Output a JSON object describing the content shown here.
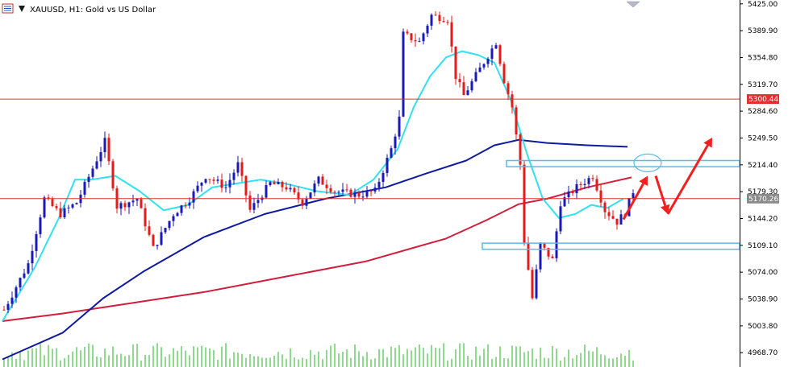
{
  "window": {
    "title": "XAUUSD, H1:  Gold vs US Dollar",
    "icon": "chart-window-icon",
    "minimize_icon": "triangle-minimize-icon"
  },
  "colors": {
    "bull_candle": "#1a1ab4",
    "bear_candle": "#e41b1b",
    "ma_fast": "#33e0ef",
    "ma_mid": "#0f1aa0",
    "ma_slow": "#d01e3c",
    "volume": "#22b322",
    "hline": "#e03030",
    "zone": "#5cb8e8",
    "arrow": "#f02020",
    "price_tag_red": "#e03030",
    "price_tag_grey": "#8a8a8a"
  },
  "chart_data": {
    "type": "candlestick",
    "symbol": "XAUUSD",
    "timeframe": "H1",
    "description": "Gold vs US Dollar",
    "ylim": [
      4950,
      5430
    ],
    "y_ticks": [
      "5425.00",
      "5389.90",
      "5354.80",
      "5319.70",
      "5284.60",
      "5249.50",
      "5214.40",
      "5179.30",
      "5144.20",
      "5109.10",
      "5074.00",
      "5038.90",
      "5003.80",
      "4968.70"
    ],
    "y_tick_values": [
      5425.0,
      5389.9,
      5354.8,
      5319.7,
      5284.6,
      5249.5,
      5214.4,
      5179.3,
      5144.2,
      5109.1,
      5074.0,
      5038.9,
      5003.8,
      4968.7
    ],
    "price_tags": [
      {
        "label": "5300.44",
        "value": 5300.44,
        "style": "red"
      },
      {
        "label": "5170.26",
        "value": 5170.26,
        "style": "grey"
      }
    ],
    "horizontal_lines": [
      5300.44,
      5170.26
    ],
    "zones": [
      {
        "low": 5212,
        "high": 5220,
        "from_bar": 125
      },
      {
        "low": 5104,
        "high": 5112,
        "from_bar": 119
      }
    ],
    "circle": {
      "bar": 160,
      "value": 5217
    },
    "arrows": [
      {
        "from_bar": 154,
        "from": 5143,
        "to_bar": 160,
        "to": 5200
      },
      {
        "from_bar": 162,
        "from": 5200,
        "to_bar": 165,
        "to": 5150
      },
      {
        "from_bar": 165,
        "from": 5150,
        "to_bar": 176,
        "to": 5250
      }
    ],
    "ohlc_keypoints": [
      [
        0,
        5025
      ],
      [
        6,
        5085
      ],
      [
        10,
        5170
      ],
      [
        14,
        5150
      ],
      [
        18,
        5165
      ],
      [
        22,
        5210
      ],
      [
        25,
        5245
      ],
      [
        28,
        5160
      ],
      [
        33,
        5170
      ],
      [
        37,
        5105
      ],
      [
        42,
        5150
      ],
      [
        46,
        5170
      ],
      [
        50,
        5200
      ],
      [
        55,
        5185
      ],
      [
        58,
        5215
      ],
      [
        61,
        5155
      ],
      [
        66,
        5190
      ],
      [
        70,
        5185
      ],
      [
        74,
        5165
      ],
      [
        78,
        5195
      ],
      [
        82,
        5180
      ],
      [
        88,
        5175
      ],
      [
        92,
        5180
      ],
      [
        96,
        5235
      ],
      [
        98,
        5275
      ],
      [
        99,
        5385
      ],
      [
        103,
        5375
      ],
      [
        106,
        5410
      ],
      [
        110,
        5405
      ],
      [
        112,
        5330
      ],
      [
        114,
        5305
      ],
      [
        118,
        5340
      ],
      [
        122,
        5375
      ],
      [
        124,
        5325
      ],
      [
        126,
        5290
      ],
      [
        128,
        5215
      ],
      [
        129,
        5115
      ],
      [
        131,
        5040
      ],
      [
        133,
        5110
      ],
      [
        136,
        5090
      ],
      [
        138,
        5165
      ],
      [
        142,
        5185
      ],
      [
        146,
        5200
      ],
      [
        149,
        5155
      ],
      [
        152,
        5140
      ],
      [
        154,
        5152
      ],
      [
        156,
        5180
      ]
    ],
    "ma_fast": [
      [
        0,
        5010
      ],
      [
        8,
        5080
      ],
      [
        14,
        5145
      ],
      [
        18,
        5195
      ],
      [
        22,
        5195
      ],
      [
        28,
        5200
      ],
      [
        34,
        5180
      ],
      [
        40,
        5155
      ],
      [
        46,
        5162
      ],
      [
        52,
        5185
      ],
      [
        58,
        5190
      ],
      [
        64,
        5195
      ],
      [
        70,
        5190
      ],
      [
        78,
        5180
      ],
      [
        86,
        5175
      ],
      [
        92,
        5195
      ],
      [
        98,
        5235
      ],
      [
        102,
        5290
      ],
      [
        106,
        5330
      ],
      [
        110,
        5355
      ],
      [
        114,
        5363
      ],
      [
        118,
        5358
      ],
      [
        122,
        5348
      ],
      [
        126,
        5300
      ],
      [
        130,
        5230
      ],
      [
        134,
        5170
      ],
      [
        138,
        5145
      ],
      [
        142,
        5150
      ],
      [
        146,
        5162
      ],
      [
        150,
        5158
      ],
      [
        154,
        5170
      ]
    ],
    "ma_mid": [
      [
        0,
        4960
      ],
      [
        15,
        4995
      ],
      [
        25,
        5040
      ],
      [
        35,
        5075
      ],
      [
        50,
        5120
      ],
      [
        65,
        5150
      ],
      [
        80,
        5170
      ],
      [
        95,
        5185
      ],
      [
        105,
        5203
      ],
      [
        115,
        5220
      ],
      [
        122,
        5240
      ],
      [
        128,
        5247
      ],
      [
        135,
        5243
      ],
      [
        145,
        5240
      ],
      [
        155,
        5238
      ]
    ],
    "ma_slow": [
      [
        0,
        5010
      ],
      [
        15,
        5020
      ],
      [
        30,
        5032
      ],
      [
        50,
        5048
      ],
      [
        70,
        5068
      ],
      [
        90,
        5088
      ],
      [
        110,
        5118
      ],
      [
        120,
        5142
      ],
      [
        128,
        5163
      ],
      [
        135,
        5170
      ],
      [
        145,
        5185
      ],
      [
        156,
        5198
      ]
    ],
    "volume_ylim": [
      0,
      100
    ]
  }
}
